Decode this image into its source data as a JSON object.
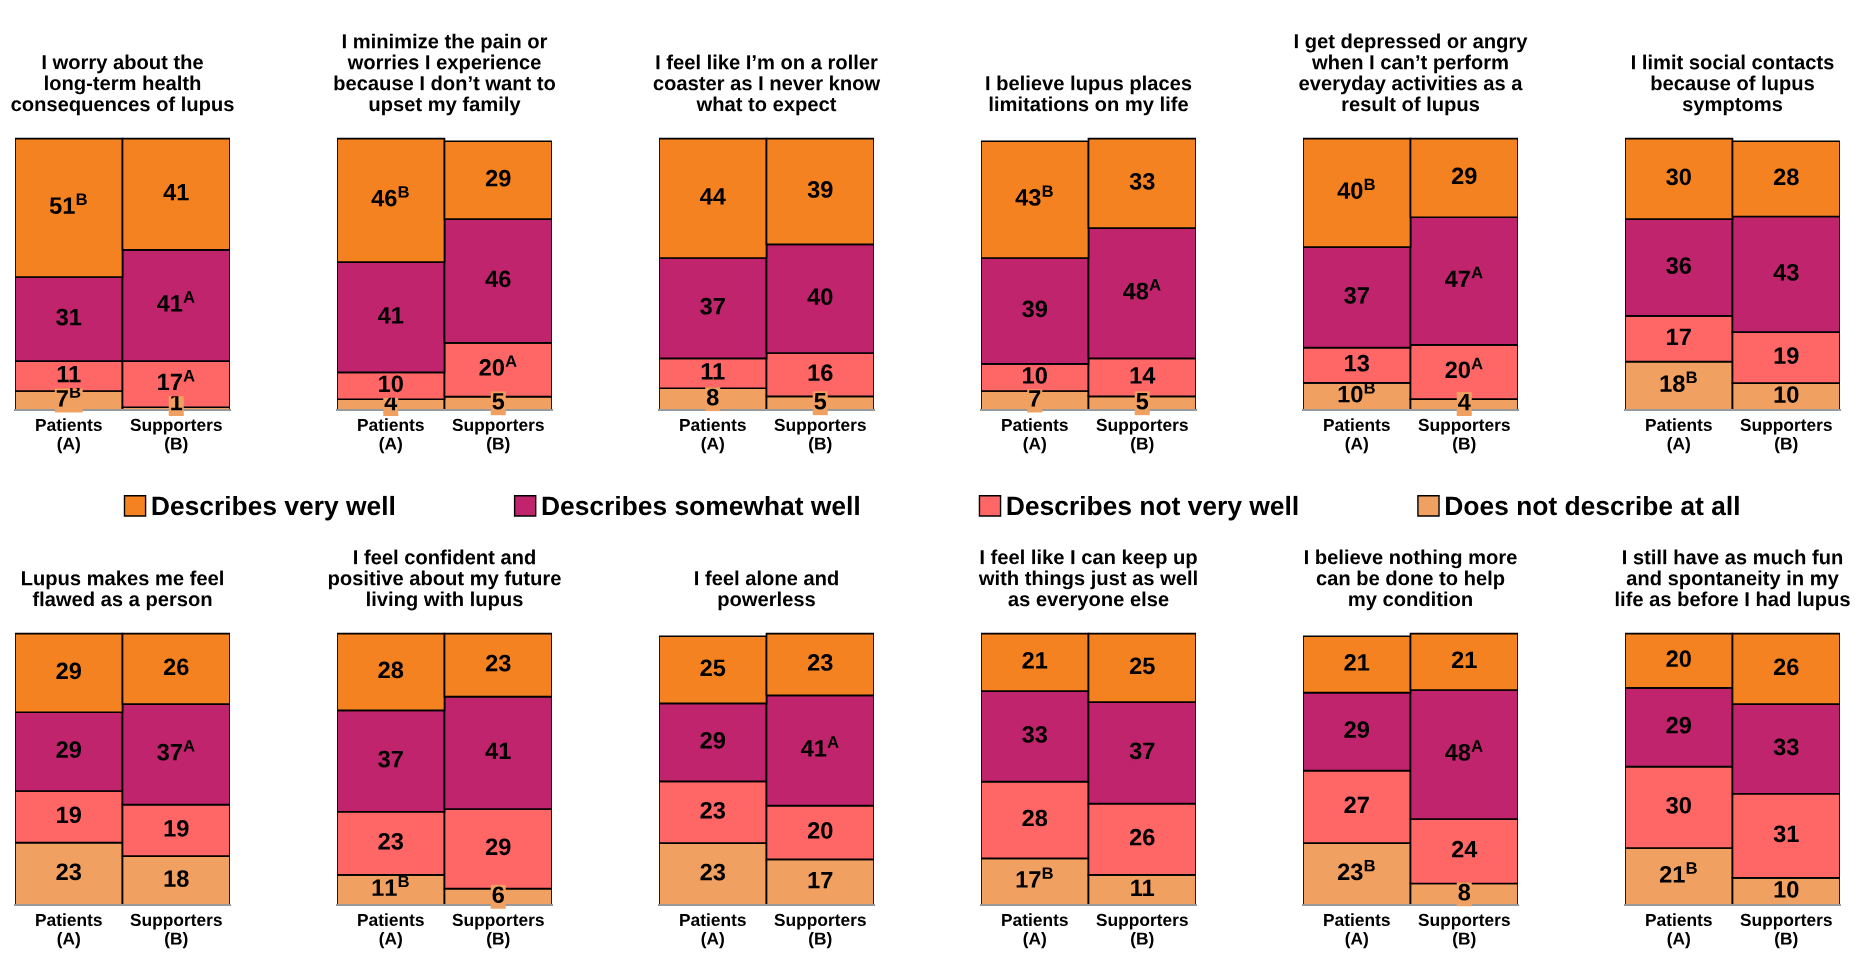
{
  "chart_data": [
    {
      "type": "bar",
      "stacked": true,
      "legend": "bottom",
      "tick_labels": "x",
      "title": "I worry about the\nlong-term health\nconsequences of lupus",
      "categories": [
        "Patients\n(A)",
        "Supporters\n(B)"
      ],
      "series": [
        {
          "name": "Does not describe at all",
          "color": "#f0a060",
          "values": [
            7,
            1
          ],
          "value_labels": [
            "7$^{B}$",
            "1"
          ]
        },
        {
          "name": "Describes not very well",
          "color": "#ff6666",
          "values": [
            11,
            17
          ],
          "value_labels": [
            "11",
            "17$^{A}$"
          ]
        },
        {
          "name": "Describes somewhat well",
          "color": "#c0246c",
          "values": [
            31,
            41
          ],
          "value_labels": [
            "31",
            "41$^{A}$"
          ]
        },
        {
          "name": "Describes very well",
          "color": "#f58220",
          "values": [
            51,
            41
          ],
          "value_labels": [
            "51$^{B}$",
            "41"
          ]
        }
      ]
    },
    {
      "type": "bar",
      "stacked": true,
      "tick_labels": "x",
      "title": "I minimize the pain or\nworries I experience\nbecause I don’t want to\nupset my family",
      "categories": [
        "Patients\n(A)",
        "Supporters\n(B)"
      ],
      "series": [
        {
          "color": "#f0a060",
          "values": [
            4,
            5
          ],
          "value_labels": [
            "4",
            "5"
          ]
        },
        {
          "color": "#ff6666",
          "values": [
            10,
            20
          ],
          "value_labels": [
            "10",
            "20$^{A}$"
          ]
        },
        {
          "color": "#c0246c",
          "values": [
            41,
            46
          ],
          "value_labels": [
            "41",
            "46"
          ]
        },
        {
          "color": "#f58220",
          "values": [
            46,
            29
          ],
          "value_labels": [
            "46$^{B}$",
            "29"
          ]
        }
      ]
    },
    {
      "type": "bar",
      "stacked": true,
      "tick_labels": "x",
      "title": "I feel like I’m on a roller\ncoaster as I never know\nwhat to expect",
      "categories": [
        "Patients\n(A)",
        "Supporters\n(B)"
      ],
      "series": [
        {
          "color": "#f0a060",
          "values": [
            8,
            5
          ],
          "value_labels": [
            "8",
            "5"
          ]
        },
        {
          "color": "#ff6666",
          "values": [
            11,
            16
          ],
          "value_labels": [
            "11",
            "16"
          ]
        },
        {
          "color": "#c0246c",
          "values": [
            37,
            40
          ],
          "value_labels": [
            "37",
            "40"
          ]
        },
        {
          "color": "#f58220",
          "values": [
            44,
            39
          ],
          "value_labels": [
            "44",
            "39"
          ]
        }
      ]
    },
    {
      "type": "bar",
      "stacked": true,
      "tick_labels": "x",
      "title": "I believe lupus places\nlimitations on my life",
      "categories": [
        "Patients\n(A)",
        "Supporters\n(B)"
      ],
      "series": [
        {
          "color": "#f0a060",
          "values": [
            7,
            5
          ],
          "value_labels": [
            "7",
            "5"
          ]
        },
        {
          "color": "#ff6666",
          "values": [
            10,
            14
          ],
          "value_labels": [
            "10",
            "14"
          ]
        },
        {
          "color": "#c0246c",
          "values": [
            39,
            48
          ],
          "value_labels": [
            "39",
            "48$^{A}$"
          ]
        },
        {
          "color": "#f58220",
          "values": [
            43,
            33
          ],
          "value_labels": [
            "43$^{B}$",
            "33"
          ]
        }
      ]
    },
    {
      "type": "bar",
      "stacked": true,
      "tick_labels": "x",
      "title": "I get depressed or angry\nwhen I can’t perform\neveryday activities as a\nresult of lupus",
      "categories": [
        "Patients\n(A)",
        "Supporters\n(B)"
      ],
      "series": [
        {
          "color": "#f0a060",
          "values": [
            10,
            4
          ],
          "value_labels": [
            "10$^{B}$",
            "4"
          ]
        },
        {
          "color": "#ff6666",
          "values": [
            13,
            20
          ],
          "value_labels": [
            "13",
            "20$^{A}$"
          ]
        },
        {
          "color": "#c0246c",
          "values": [
            37,
            47
          ],
          "value_labels": [
            "37",
            "47$^{A}$"
          ]
        },
        {
          "color": "#f58220",
          "values": [
            40,
            29
          ],
          "value_labels": [
            "40$^{B}$",
            "29"
          ]
        }
      ]
    },
    {
      "type": "bar",
      "stacked": true,
      "tick_labels": "x",
      "title": "I limit social contacts\nbecause of lupus\nsymptoms",
      "categories": [
        "Patients\n(A)",
        "Supporters\n(B)"
      ],
      "series": [
        {
          "color": "#f0a060",
          "values": [
            18,
            10
          ],
          "value_labels": [
            "18$^{B}$",
            "10"
          ]
        },
        {
          "color": "#ff6666",
          "values": [
            17,
            19
          ],
          "value_labels": [
            "17",
            "19"
          ]
        },
        {
          "color": "#c0246c",
          "values": [
            36,
            43
          ],
          "value_labels": [
            "36",
            "43"
          ]
        },
        {
          "color": "#f58220",
          "values": [
            30,
            28
          ],
          "value_labels": [
            "30",
            "28"
          ]
        }
      ]
    },
    {
      "type": "bar",
      "stacked": true,
      "tick_labels": "x",
      "title": "Lupus makes me feel\nflawed as a person",
      "categories": [
        "Patients\n(A)",
        "Supporters\n(B)"
      ],
      "series": [
        {
          "color": "#f0a060",
          "values": [
            23,
            18
          ],
          "value_labels": [
            "23",
            "18"
          ]
        },
        {
          "color": "#ff6666",
          "values": [
            19,
            19
          ],
          "value_labels": [
            "19",
            "19"
          ]
        },
        {
          "color": "#c0246c",
          "values": [
            29,
            37
          ],
          "value_labels": [
            "29",
            "37$^{A}$"
          ]
        },
        {
          "color": "#f58220",
          "values": [
            29,
            26
          ],
          "value_labels": [
            "29",
            "26"
          ]
        }
      ]
    },
    {
      "type": "bar",
      "stacked": true,
      "tick_labels": "x",
      "title": "I feel confident and\npositive about my future\nliving with lupus",
      "categories": [
        "Patients\n(A)",
        "Supporters\n(B)"
      ],
      "series": [
        {
          "color": "#f0a060",
          "values": [
            11,
            6
          ],
          "value_labels": [
            "11$^{B}$",
            "6"
          ]
        },
        {
          "color": "#ff6666",
          "values": [
            23,
            29
          ],
          "value_labels": [
            "23",
            "29"
          ]
        },
        {
          "color": "#c0246c",
          "values": [
            37,
            41
          ],
          "value_labels": [
            "37",
            "41"
          ]
        },
        {
          "color": "#f58220",
          "values": [
            28,
            23
          ],
          "value_labels": [
            "28",
            "23"
          ]
        }
      ]
    },
    {
      "type": "bar",
      "stacked": true,
      "tick_labels": "x",
      "title": "I feel alone and\npowerless",
      "categories": [
        "Patients\n(A)",
        "Supporters\n(B)"
      ],
      "series": [
        {
          "color": "#f0a060",
          "values": [
            23,
            17
          ],
          "value_labels": [
            "23",
            "17"
          ]
        },
        {
          "color": "#ff6666",
          "values": [
            23,
            20
          ],
          "value_labels": [
            "23",
            "20"
          ]
        },
        {
          "color": "#c0246c",
          "values": [
            29,
            41
          ],
          "value_labels": [
            "29",
            "41$^{A}$"
          ]
        },
        {
          "color": "#f58220",
          "values": [
            25,
            23
          ],
          "value_labels": [
            "25",
            "23"
          ]
        }
      ]
    },
    {
      "type": "bar",
      "stacked": true,
      "tick_labels": "x",
      "title": "I feel like I can keep up\nwith things just as well\nas everyone else",
      "categories": [
        "Patients\n(A)",
        "Supporters\n(B)"
      ],
      "series": [
        {
          "color": "#f0a060",
          "values": [
            17,
            11
          ],
          "value_labels": [
            "17$^{B}$",
            "11"
          ]
        },
        {
          "color": "#ff6666",
          "values": [
            28,
            26
          ],
          "value_labels": [
            "28",
            "26"
          ]
        },
        {
          "color": "#c0246c",
          "values": [
            33,
            37
          ],
          "value_labels": [
            "33",
            "37"
          ]
        },
        {
          "color": "#f58220",
          "values": [
            21,
            25
          ],
          "value_labels": [
            "21",
            "25"
          ]
        }
      ]
    },
    {
      "type": "bar",
      "stacked": true,
      "tick_labels": "x",
      "title": "I believe nothing more\ncan be done to help\nmy condition",
      "categories": [
        "Patients\n(A)",
        "Supporters\n(B)"
      ],
      "series": [
        {
          "color": "#f0a060",
          "values": [
            23,
            8
          ],
          "value_labels": [
            "23$^{B}$",
            "8"
          ]
        },
        {
          "color": "#ff6666",
          "values": [
            27,
            24
          ],
          "value_labels": [
            "27",
            "24"
          ]
        },
        {
          "color": "#c0246c",
          "values": [
            29,
            48
          ],
          "value_labels": [
            "29",
            "48$^{A}$"
          ]
        },
        {
          "color": "#f58220",
          "values": [
            21,
            21
          ],
          "value_labels": [
            "21",
            "21"
          ]
        }
      ]
    },
    {
      "type": "bar",
      "stacked": true,
      "tick_labels": "x",
      "title": "I still have as much fun\nand spontaneity in my\nlife as before I had lupus",
      "categories": [
        "Patients\n(A)",
        "Supporters\n(B)"
      ],
      "series": [
        {
          "color": "#f0a060",
          "values": [
            21,
            10
          ],
          "value_labels": [
            "21$^{B}$",
            "10"
          ]
        },
        {
          "color": "#ff6666",
          "values": [
            30,
            31
          ],
          "value_labels": [
            "30",
            "31"
          ]
        },
        {
          "color": "#c0246c",
          "values": [
            29,
            33
          ],
          "value_labels": [
            "29",
            "33"
          ]
        },
        {
          "color": "#f58220",
          "values": [
            20,
            26
          ],
          "value_labels": [
            "20",
            "26"
          ]
        }
      ]
    }
  ]
}
